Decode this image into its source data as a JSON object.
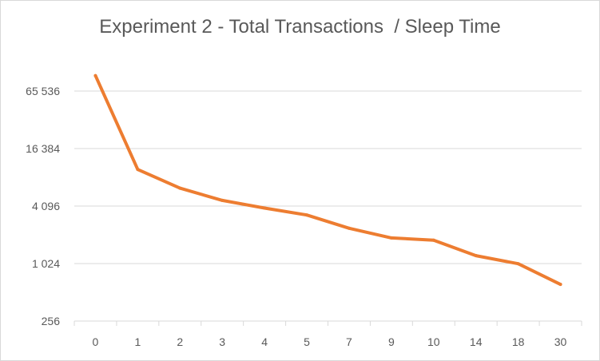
{
  "colors": {
    "series": "#ED7D31",
    "gridline": "#D9D9D9",
    "axis_text": "#595959"
  },
  "chart_data": {
    "type": "line",
    "title": "Experiment 2 - Total Transactions  / Sleep Time",
    "xlabel": "",
    "ylabel": "",
    "y_scale": "log2",
    "ylim": [
      256,
      262144
    ],
    "y_ticks": [
      256,
      1024,
      4096,
      16384,
      65536
    ],
    "y_tick_labels": [
      "256",
      "1 024",
      "4 096",
      "16 384",
      "65 536"
    ],
    "grid": true,
    "legend": "none",
    "categories": [
      "0",
      "1",
      "2",
      "3",
      "4",
      "5",
      "7",
      "9",
      "10",
      "14",
      "18",
      "30"
    ],
    "series": [
      {
        "values": [
          95000,
          9900,
          6300,
          4700,
          3900,
          3300,
          2400,
          1900,
          1800,
          1240,
          1020,
          620
        ]
      }
    ]
  }
}
